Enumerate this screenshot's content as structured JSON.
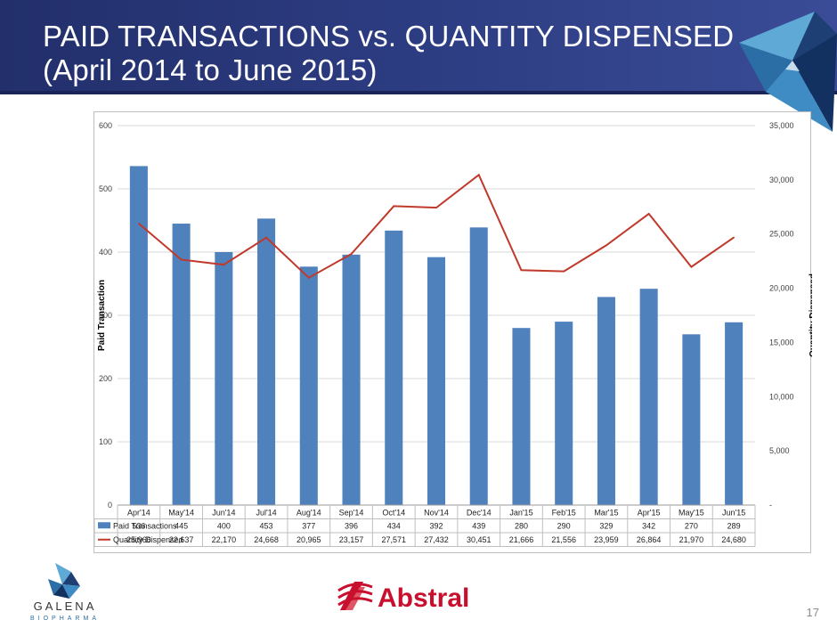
{
  "slide": {
    "title_line1": "PAID TRANSACTIONS vs. QUANTITY DISPENSED",
    "title_line2": "(April 2014 to June 2015)",
    "page_number": "17",
    "logo_left_text": "GALENA",
    "logo_left_subtext": "BIOPHARMA",
    "logo_right_text": "Abstral",
    "colors": {
      "header": "#2e3e84",
      "bar": "#4f81bd",
      "line": "#c0392b",
      "abstral_red": "#c8102e"
    }
  },
  "chart_data": {
    "type": "bar",
    "categories": [
      "Apr'14",
      "May'14",
      "Jun'14",
      "Jul'14",
      "Aug'14",
      "Sep'14",
      "Oct'14",
      "Nov'14",
      "Dec'14",
      "Jan'15",
      "Feb'15",
      "Mar'15",
      "Apr'15",
      "May'15",
      "Jun'15"
    ],
    "series": [
      {
        "name": "Paid Transactions",
        "type": "bar",
        "axis": "left",
        "values": [
          536,
          445,
          400,
          453,
          377,
          396,
          434,
          392,
          439,
          280,
          290,
          329,
          342,
          270,
          289
        ],
        "labels": [
          "536",
          "445",
          "400",
          "453",
          "377",
          "396",
          "434",
          "392",
          "439",
          "280",
          "290",
          "329",
          "342",
          "270",
          "289"
        ]
      },
      {
        "name": "Quantity Dispensed",
        "type": "line",
        "axis": "right",
        "values": [
          25966,
          22637,
          22170,
          24668,
          20965,
          23157,
          27571,
          27432,
          30451,
          21666,
          21556,
          23959,
          26864,
          21970,
          24680
        ],
        "labels": [
          "25,966",
          "22,637",
          "22,170",
          "24,668",
          "20,965",
          "23,157",
          "27,571",
          "27,432",
          "30,451",
          "21,666",
          "21,556",
          "23,959",
          "26,864",
          "21,970",
          "24,680"
        ]
      }
    ],
    "ylabel": "Paid Transaction",
    "y2label": "Quantity Dispensed",
    "ylim": [
      0,
      600
    ],
    "y2lim": [
      0,
      35000
    ],
    "yticks": [
      "0",
      "100",
      "200",
      "300",
      "400",
      "500",
      "600"
    ],
    "y2ticks": [
      "-",
      "5,000",
      "10,000",
      "15,000",
      "20,000",
      "25,000",
      "30,000",
      "35,000"
    ],
    "grid": true,
    "legend": "data-table"
  }
}
